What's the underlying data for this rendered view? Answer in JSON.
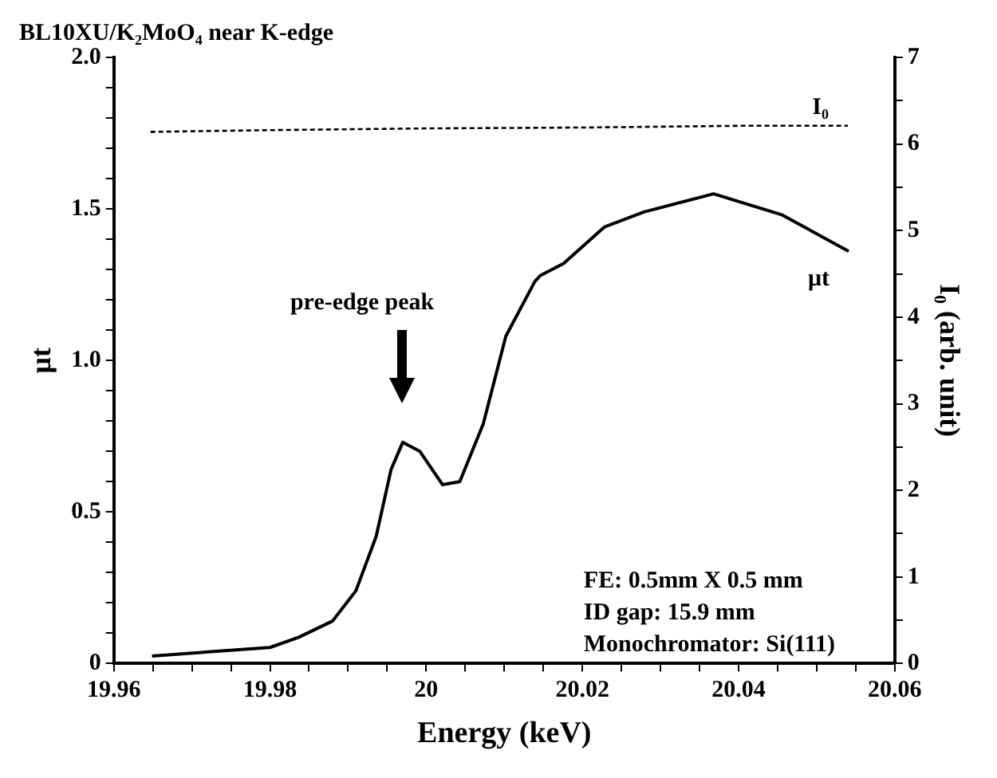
{
  "chart_data": {
    "type": "line",
    "title": "BL10XU/K₂MoO₄ near K-edge",
    "xlabel": "Energy (keV)",
    "ylabel": "μt",
    "y2label": "I₀ (arb. unit)",
    "xlim": [
      19.96,
      20.06
    ],
    "xticks": [
      19.96,
      {
        "value": 19.965,
        "label": null
      },
      {
        "value": 19.97,
        "label": null
      },
      {
        "value": 19.975,
        "label": null
      },
      19.98,
      {
        "value": 19.985,
        "label": null
      },
      {
        "value": 19.99,
        "label": null
      },
      {
        "value": 19.995,
        "label": null
      },
      20,
      {
        "value": 20.005,
        "label": null
      },
      {
        "value": 20.01,
        "label": null
      },
      {
        "value": 20.015,
        "label": null
      },
      20.02,
      {
        "value": 20.025,
        "label": null
      },
      {
        "value": 20.03,
        "label": null
      },
      {
        "value": 20.035,
        "label": null
      },
      20.04,
      {
        "value": 20.045,
        "label": null
      },
      {
        "value": 20.05,
        "label": null
      },
      {
        "value": 20.055,
        "label": null
      },
      20.06
    ],
    "ylim": [
      0,
      2
    ],
    "yticks": [
      0,
      {
        "value": 0.1,
        "label": null
      },
      {
        "value": 0.2,
        "label": null
      },
      {
        "value": 0.3,
        "label": null
      },
      {
        "value": 0.4,
        "label": null
      },
      0.5,
      {
        "value": 0.6,
        "label": null
      },
      {
        "value": 0.7,
        "label": null
      },
      {
        "value": 0.8,
        "label": null
      },
      {
        "value": 0.9,
        "label": null
      },
      {
        "value": 1,
        "label": "1.0"
      },
      {
        "value": 1.1,
        "label": null
      },
      {
        "value": 1.2,
        "label": null
      },
      {
        "value": 1.3,
        "label": null
      },
      {
        "value": 1.4,
        "label": null
      },
      1.5,
      {
        "value": 1.6,
        "label": null
      },
      {
        "value": 1.7,
        "label": null
      },
      {
        "value": 1.8,
        "label": null
      },
      {
        "value": 1.9,
        "label": null
      },
      {
        "value": 2,
        "label": "2.0"
      }
    ],
    "y2lim": [
      0,
      7
    ],
    "y2ticks": [
      0,
      {
        "value": 0.5,
        "label": null
      },
      1,
      {
        "value": 1.5,
        "label": null
      },
      2,
      {
        "value": 2.5,
        "label": null
      },
      3,
      {
        "value": 3.5,
        "label": null
      },
      4,
      {
        "value": 4.5,
        "label": null
      },
      5,
      {
        "value": 5.5,
        "label": null
      },
      6,
      {
        "value": 6.5,
        "label": null
      },
      7
    ],
    "grid": false,
    "legend": false,
    "marker": "none",
    "series": [
      {
        "name": "I₀",
        "color": "#000000",
        "axis": "y2",
        "line_style": "dashed",
        "x": [
          19.9647,
          19.98,
          20.0,
          20.02,
          20.04,
          20.054
        ],
        "values": [
          6.14,
          6.16,
          6.18,
          6.19,
          6.21,
          6.21
        ]
      },
      {
        "name": "μt",
        "color": "#000000",
        "line_style": "solid",
        "x": [
          19.9649,
          19.98,
          19.9837,
          19.988,
          19.991,
          19.9936,
          19.9955,
          19.997,
          19.9992,
          20.0021,
          20.0043,
          20.0073,
          20.0102,
          20.0139,
          20.0146,
          20.0176,
          20.0228,
          20.0279,
          20.0368,
          20.0456,
          20.0541
        ],
        "values": [
          0.025,
          0.053,
          0.087,
          0.14,
          0.24,
          0.42,
          0.64,
          0.73,
          0.7,
          0.59,
          0.6,
          0.79,
          1.08,
          1.26,
          1.28,
          1.32,
          1.44,
          1.49,
          1.55,
          1.48,
          1.36
        ]
      }
    ],
    "annotations": [
      "pre-edge peak",
      "FE: 0.5mm X 0.5 mm",
      "ID gap: 15.9 mm",
      "Monochromator: Si(111)"
    ]
  }
}
